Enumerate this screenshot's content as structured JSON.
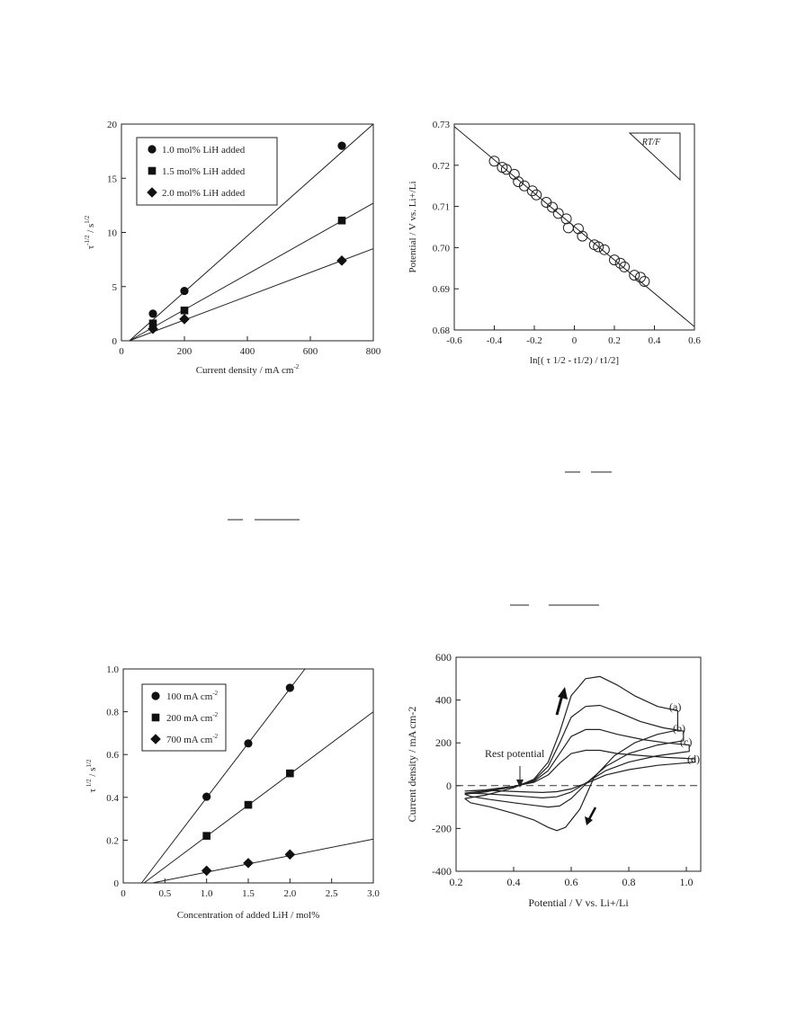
{
  "chart_data": [
    {
      "type": "scatter",
      "xlabel": "Current density / mA cm",
      "xlabel_sup": "-2",
      "ylabel_parts": [
        "τ",
        "-1/2",
        " / s",
        "1/2"
      ],
      "xlim": [
        0,
        800
      ],
      "ylim": [
        0,
        20
      ],
      "xticks": [
        0,
        200,
        400,
        600,
        800
      ],
      "yticks": [
        0,
        5,
        10,
        15,
        20
      ],
      "legend_position": "top-left",
      "grid": false,
      "series": [
        {
          "name": "1.0 mol% LiH added",
          "marker": "circle",
          "x": [
            100,
            200,
            700
          ],
          "y": [
            2.5,
            4.6,
            18.0
          ],
          "fit": [
            [
              25,
              0
            ],
            [
              800,
              20.3
            ]
          ]
        },
        {
          "name": "1.5 mol% LiH added",
          "marker": "square",
          "x": [
            100,
            200,
            700
          ],
          "y": [
            1.6,
            2.8,
            11.1
          ],
          "fit": [
            [
              25,
              0
            ],
            [
              800,
              12.7
            ]
          ]
        },
        {
          "name": "2.0 mol% LiH added",
          "marker": "diamond",
          "x": [
            100,
            200,
            700
          ],
          "y": [
            1.1,
            2.0,
            7.4
          ],
          "fit": [
            [
              25,
              0
            ],
            [
              800,
              8.5
            ]
          ]
        }
      ]
    },
    {
      "type": "scatter",
      "xlabel": "ln[( τ 1/2 - t1/2) / t1/2]",
      "ylabel": "Potential / V vs. Li+/Li",
      "xlim": [
        -0.6,
        0.6
      ],
      "ylim": [
        0.68,
        0.73
      ],
      "xticks": [
        -0.6,
        -0.4,
        -0.2,
        0,
        0.2,
        0.4,
        0.6
      ],
      "yticks": [
        0.68,
        0.69,
        0.7,
        0.71,
        0.72,
        0.73
      ],
      "annotation": "RT/F",
      "grid": false,
      "series": [
        {
          "marker": "open-circle",
          "x": [
            -0.4,
            -0.36,
            -0.34,
            -0.3,
            -0.28,
            -0.25,
            -0.21,
            -0.19,
            -0.14,
            -0.11,
            -0.08,
            -0.04,
            -0.03,
            0.02,
            0.04,
            0.1,
            0.12,
            0.15,
            0.2,
            0.23,
            0.25,
            0.3,
            0.33,
            0.35
          ],
          "y": [
            0.721,
            0.7195,
            0.719,
            0.7178,
            0.716,
            0.715,
            0.7138,
            0.7128,
            0.711,
            0.7098,
            0.7083,
            0.707,
            0.7048,
            0.7046,
            0.7028,
            0.7007,
            0.7002,
            0.6995,
            0.697,
            0.6962,
            0.6953,
            0.6933,
            0.6928,
            0.6918
          ],
          "fit": [
            [
              -0.6,
              0.7294
            ],
            [
              0.6,
              0.6808
            ]
          ]
        }
      ]
    },
    {
      "type": "scatter",
      "xlabel": "Concentration of added LiH / mol%",
      "ylabel_parts": [
        "τ",
        " 1/2",
        " / s",
        "1/2"
      ],
      "xlim": [
        0,
        3.0
      ],
      "ylim": [
        0,
        1.0
      ],
      "xticks": [
        "0",
        "0.5",
        "1.0",
        "1.5",
        "2.0",
        "2.5",
        "3.0"
      ],
      "yticks": [
        "0",
        "0.2",
        "0.4",
        "0.6",
        "0.8",
        "1.0"
      ],
      "legend_position": "top-left",
      "grid": false,
      "series": [
        {
          "name": "100 mA cm",
          "name_sup": "-2",
          "marker": "circle",
          "x": [
            1.0,
            1.5,
            2.0
          ],
          "y": [
            0.403,
            0.652,
            0.912
          ],
          "fit": [
            [
              0.22,
              0
            ],
            [
              2.18,
              1.0
            ]
          ]
        },
        {
          "name": "200 mA cm",
          "name_sup": "-2",
          "marker": "square",
          "x": [
            1.0,
            1.5,
            2.0
          ],
          "y": [
            0.22,
            0.365,
            0.512
          ],
          "fit": [
            [
              0.25,
              0
            ],
            [
              3.0,
              0.8
            ]
          ]
        },
        {
          "name": "700 mA cm",
          "name_sup": "-2",
          "marker": "diamond",
          "x": [
            1.0,
            1.5,
            2.0
          ],
          "y": [
            0.057,
            0.093,
            0.133
          ],
          "fit": [
            [
              0.35,
              0
            ],
            [
              3.0,
              0.205
            ]
          ]
        }
      ]
    },
    {
      "type": "line",
      "xlabel": "Potential / V vs. Li+/Li",
      "ylabel": "Current density / mA cm-2",
      "xlim": [
        0.2,
        1.05
      ],
      "ylim": [
        -400,
        600
      ],
      "xticks": [
        "0.2",
        "0.4",
        "0.6",
        "0.8",
        "1.0"
      ],
      "yticks": [
        "-400",
        "-200",
        "0",
        "200",
        "400",
        "600"
      ],
      "annotation": "Rest potential",
      "curve_labels": [
        "(a)",
        "(b)",
        "(c)",
        "(d)"
      ],
      "grid": false,
      "series": [
        {
          "name": "(a)",
          "x": [
            0.23,
            0.3,
            0.4,
            0.47,
            0.52,
            0.56,
            0.6,
            0.65,
            0.7,
            0.76,
            0.82,
            0.9,
            0.97,
            0.97,
            0.9,
            0.82,
            0.75,
            0.68,
            0.63,
            0.58,
            0.55,
            0.52,
            0.47,
            0.4,
            0.32,
            0.25,
            0.23
          ],
          "y": [
            -60,
            -45,
            -10,
            30,
            110,
            250,
            420,
            500,
            510,
            470,
            420,
            370,
            350,
            260,
            240,
            200,
            140,
            40,
            -110,
            -195,
            -210,
            -195,
            -160,
            -130,
            -100,
            -80,
            -60
          ]
        },
        {
          "name": "(b)",
          "x": [
            0.23,
            0.3,
            0.4,
            0.47,
            0.52,
            0.56,
            0.6,
            0.65,
            0.7,
            0.76,
            0.84,
            0.92,
            0.99,
            0.99,
            0.9,
            0.8,
            0.72,
            0.66,
            0.6,
            0.56,
            0.52,
            0.47,
            0.4,
            0.32,
            0.25,
            0.23
          ],
          "y": [
            -40,
            -30,
            -5,
            25,
            90,
            200,
            320,
            370,
            375,
            345,
            300,
            270,
            255,
            210,
            190,
            150,
            90,
            20,
            -60,
            -95,
            -100,
            -92,
            -80,
            -65,
            -50,
            -40
          ]
        },
        {
          "name": "(c)",
          "x": [
            0.23,
            0.3,
            0.4,
            0.47,
            0.52,
            0.56,
            0.6,
            0.65,
            0.7,
            0.76,
            0.85,
            0.93,
            1.01,
            1.01,
            0.9,
            0.8,
            0.72,
            0.66,
            0.6,
            0.55,
            0.5,
            0.45,
            0.38,
            0.3,
            0.23
          ],
          "y": [
            -35,
            -25,
            -5,
            20,
            70,
            150,
            230,
            262,
            262,
            240,
            215,
            200,
            190,
            160,
            140,
            110,
            70,
            20,
            -30,
            -52,
            -57,
            -52,
            -45,
            -38,
            -35
          ]
        },
        {
          "name": "(d)",
          "x": [
            0.23,
            0.3,
            0.4,
            0.47,
            0.52,
            0.56,
            0.6,
            0.65,
            0.7,
            0.76,
            0.85,
            0.93,
            1.03,
            1.03,
            0.9,
            0.8,
            0.72,
            0.66,
            0.6,
            0.55,
            0.5,
            0.45,
            0.38,
            0.3,
            0.23
          ],
          "y": [
            -25,
            -20,
            -3,
            15,
            50,
            105,
            150,
            165,
            165,
            150,
            140,
            132,
            125,
            110,
            95,
            75,
            50,
            15,
            -15,
            -28,
            -32,
            -30,
            -26,
            -22,
            -25
          ]
        }
      ]
    }
  ]
}
